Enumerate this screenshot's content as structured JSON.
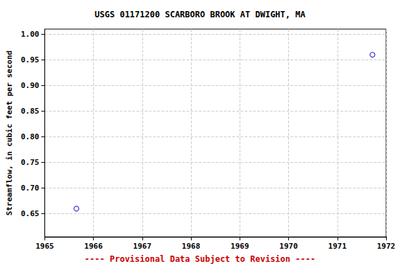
{
  "chart_data": {
    "type": "scatter",
    "title": "USGS 01171200 SCARBORO BROOK AT DWIGHT, MA",
    "y_label": "Streamflow, in cubic feet per second",
    "annotations": [
      "---- Provisional Data Subject to Revision ----"
    ],
    "x": [
      1965.65,
      1971.72
    ],
    "values": [
      0.66,
      0.96
    ],
    "color": "#0000cc",
    "marker": "circle",
    "xlim": [
      1965,
      1972
    ],
    "xticks": [
      1965,
      1966,
      1967,
      1968,
      1969,
      1970,
      1971,
      1972
    ],
    "ylim": [
      0.605,
      1.01
    ],
    "yticks": [
      0.65,
      {
        "value": 0.7,
        "label": "0.70"
      },
      0.75,
      {
        "value": 0.8,
        "label": "0.80"
      },
      0.85,
      {
        "value": 0.9,
        "label": "0.90"
      },
      0.95,
      {
        "value": 1.0,
        "label": "1.00"
      }
    ],
    "grid": true
  }
}
